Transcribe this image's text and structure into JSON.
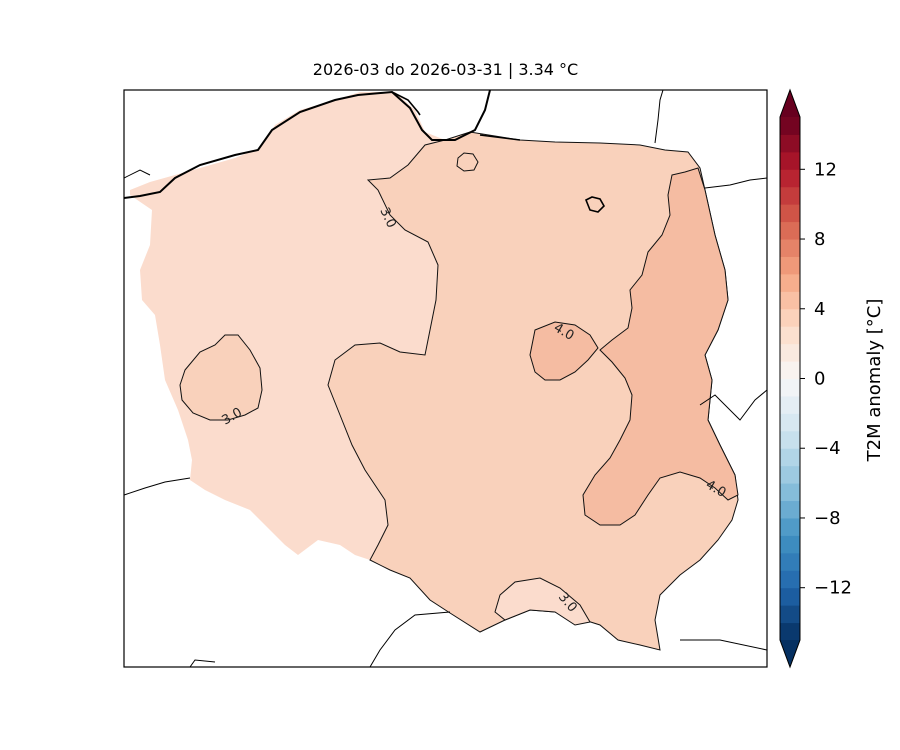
{
  "title": "2026-03 do 2026-03-31 | 3.34 °C",
  "colorbar": {
    "label": "T2M anomaly [°C]",
    "min": -15,
    "max": 15,
    "step": 1,
    "ticks": [
      {
        "value": 12,
        "label": "12"
      },
      {
        "value": 8,
        "label": "8"
      },
      {
        "value": 4,
        "label": "4"
      },
      {
        "value": 0,
        "label": "0"
      },
      {
        "value": -4,
        "label": "−4"
      },
      {
        "value": -8,
        "label": "−8"
      },
      {
        "value": -12,
        "label": "−12"
      }
    ],
    "extend": "both"
  },
  "contours": [
    {
      "level": 3.0,
      "labels": [
        "3.0",
        "3.0",
        "3.0"
      ]
    },
    {
      "level": 4.0,
      "labels": [
        "4.0",
        "4.0"
      ]
    }
  ],
  "regions": [
    {
      "name": "country-base",
      "anomaly_range": "2-3"
    },
    {
      "name": "east-center",
      "anomaly_range": "3-4"
    },
    {
      "name": "east-strip",
      "anomaly_range": "4-5"
    }
  ],
  "colors": {
    "frame": "#000000",
    "band_2_3": "#fbdccd",
    "band_3_4": "#f9d1bb",
    "band_4_5": "#f5bca2"
  }
}
